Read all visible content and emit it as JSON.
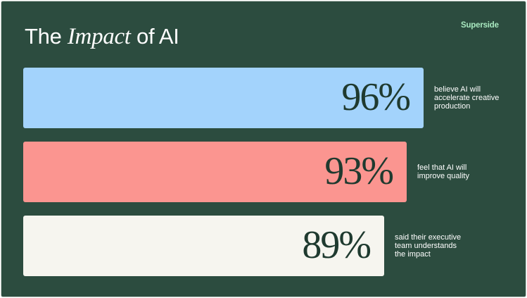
{
  "slide": {
    "title_prefix": "The ",
    "title_emphasis": "Impact",
    "title_suffix": " of AI",
    "brand": "Superside",
    "background": "#2c4c3f"
  },
  "chart_data": {
    "type": "bar",
    "orientation": "horizontal",
    "title": "The Impact of AI",
    "categories": [
      "believe AI will accelerate creative production",
      "feel that AI will improve quality",
      "said their executive team understands the impact"
    ],
    "values": [
      96,
      93,
      89
    ],
    "value_labels": [
      "96%",
      "93%",
      "89%"
    ],
    "captions": [
      [
        "believe AI will",
        "accelerate creative",
        "production"
      ],
      [
        "feel that AI will",
        "improve quality"
      ],
      [
        "said their executive",
        "team understands",
        "the impact"
      ]
    ],
    "colors": [
      "#a3d3fc",
      "#fb9590",
      "#f6f5ef"
    ],
    "xlim": [
      0,
      100
    ],
    "grid": false,
    "legend": "none"
  }
}
